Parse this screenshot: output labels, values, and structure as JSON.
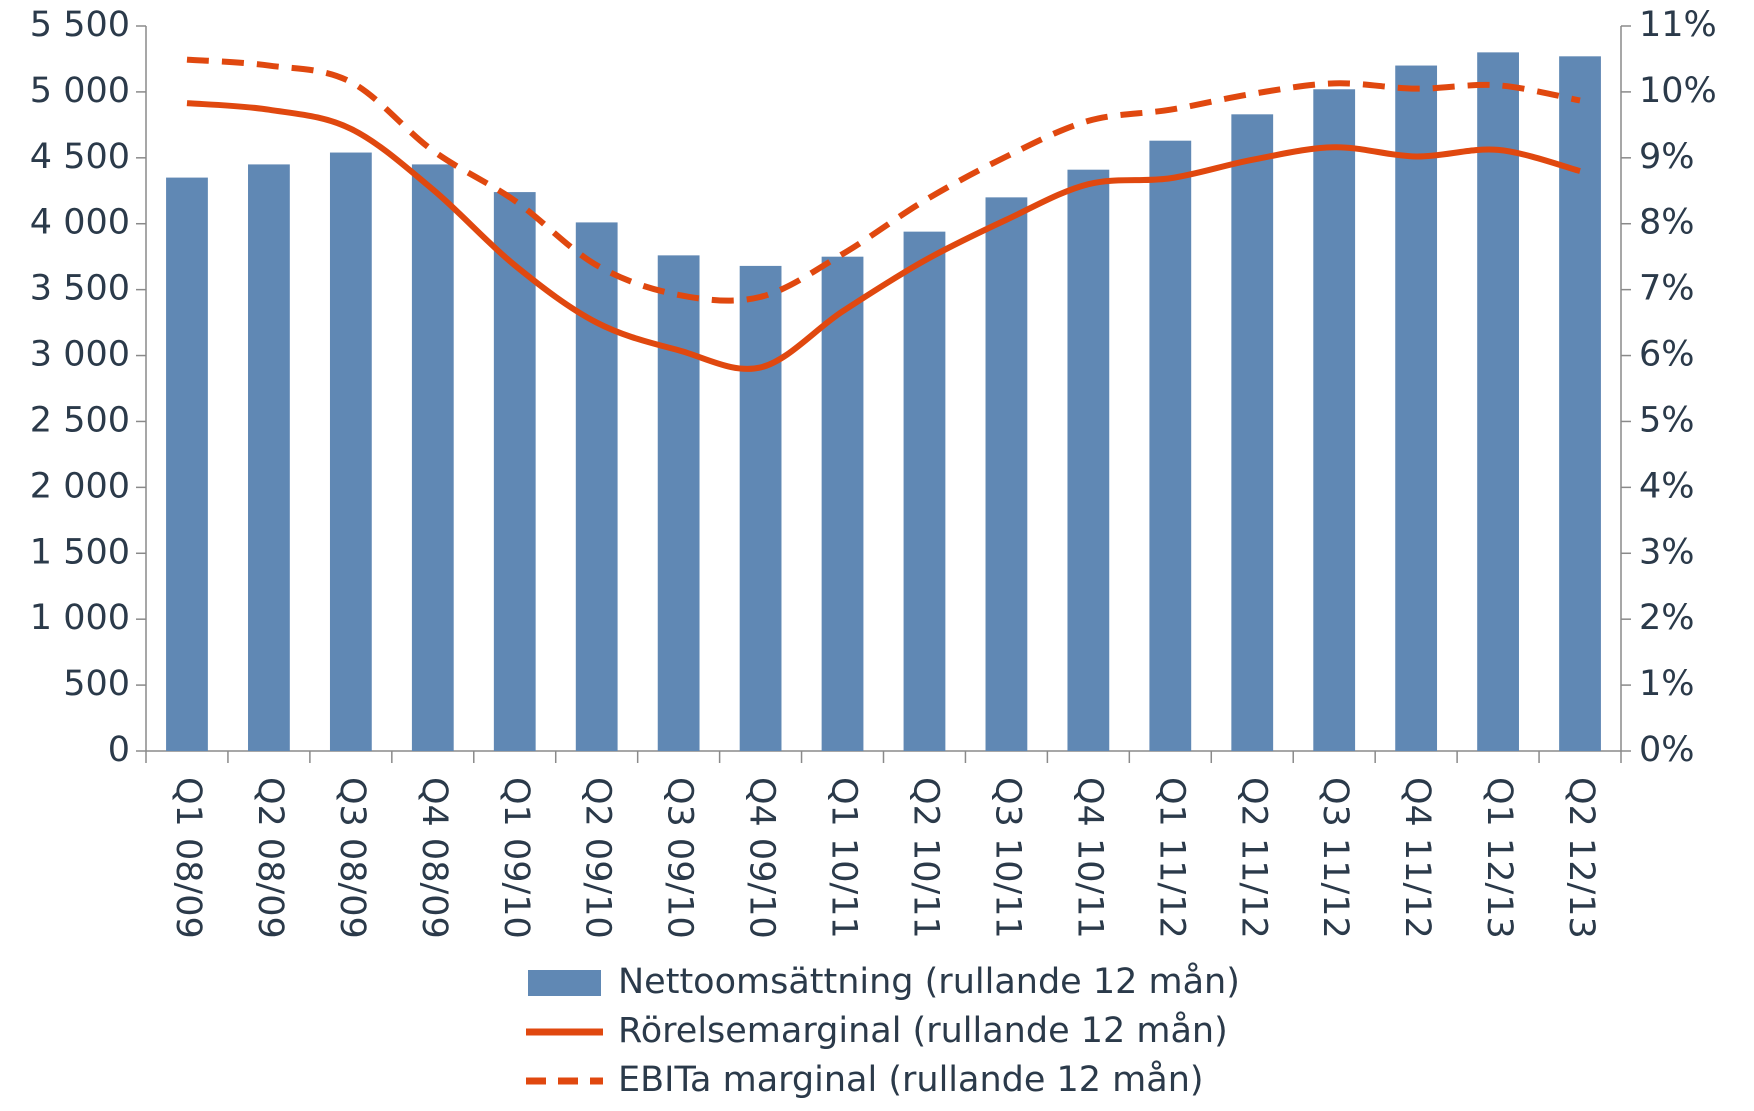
{
  "chart_data": {
    "type": "bar_line",
    "categories": [
      "Q1 08/09",
      "Q2 08/09",
      "Q3 08/09",
      "Q4 08/09",
      "Q1 09/10",
      "Q2 09/10",
      "Q3 09/10",
      "Q4 09/10",
      "Q1 10/11",
      "Q2 10/11",
      "Q3 10/11",
      "Q4 10/11",
      "Q1 11/12",
      "Q2 11/12",
      "Q3 11/12",
      "Q4 11/12",
      "Q1 12/13",
      "Q2 12/13"
    ],
    "series": [
      {
        "name": "Nettoomsättning (rullande 12 mån)",
        "type": "bar",
        "color": "#6088b4",
        "values": [
          4350,
          4450,
          4540,
          4450,
          4240,
          4010,
          3760,
          3680,
          3750,
          3940,
          4200,
          4410,
          4630,
          4830,
          5020,
          5200,
          5300,
          5270
        ]
      },
      {
        "name": "Rörelsemarginal (rullande 12 mån)",
        "type": "line",
        "axis": "y2",
        "color": "#e0480f",
        "dash": false,
        "values": [
          9.83,
          9.73,
          9.44,
          8.52,
          7.37,
          6.5,
          6.08,
          5.82,
          6.67,
          7.44,
          8.06,
          8.6,
          8.69,
          8.97,
          9.16,
          9.02,
          9.12,
          8.8
        ]
      },
      {
        "name": "EBITa marginal (rullande 12 mån)",
        "type": "line",
        "axis": "y2",
        "color": "#e0480f",
        "dash": true,
        "values": [
          10.49,
          10.4,
          10.15,
          9.11,
          8.35,
          7.37,
          6.92,
          6.89,
          7.54,
          8.35,
          9.02,
          9.56,
          9.73,
          9.97,
          10.13,
          10.05,
          10.1,
          9.87
        ]
      }
    ],
    "ylim": [
      0,
      5500
    ],
    "yticks": [
      0,
      500,
      {
        "value": 1000,
        "label": "1 000"
      },
      {
        "value": 1500,
        "label": "1 500"
      },
      {
        "value": 2000,
        "label": "2 000"
      },
      {
        "value": 2500,
        "label": "2 500"
      },
      {
        "value": 3000,
        "label": "3 000"
      },
      {
        "value": 3500,
        "label": "3 500"
      },
      {
        "value": 4000,
        "label": "4 000"
      },
      {
        "value": 4500,
        "label": "4 500"
      },
      {
        "value": 5000,
        "label": "5 000"
      },
      {
        "value": 5500,
        "label": "5 500"
      }
    ],
    "y2lim": [
      0,
      11
    ],
    "y2ticks": [
      {
        "value": 0,
        "label": "0%"
      },
      {
        "value": 1,
        "label": "1%"
      },
      {
        "value": 2,
        "label": "2%"
      },
      {
        "value": 3,
        "label": "3%"
      },
      {
        "value": 4,
        "label": "4%"
      },
      {
        "value": 5,
        "label": "5%"
      },
      {
        "value": 6,
        "label": "6%"
      },
      {
        "value": 7,
        "label": "7%"
      },
      {
        "value": 8,
        "label": "8%"
      },
      {
        "value": 9,
        "label": "9%"
      },
      {
        "value": 10,
        "label": "10%"
      },
      {
        "value": 11,
        "label": "11%"
      }
    ],
    "grid": false,
    "legend": "bottom"
  }
}
